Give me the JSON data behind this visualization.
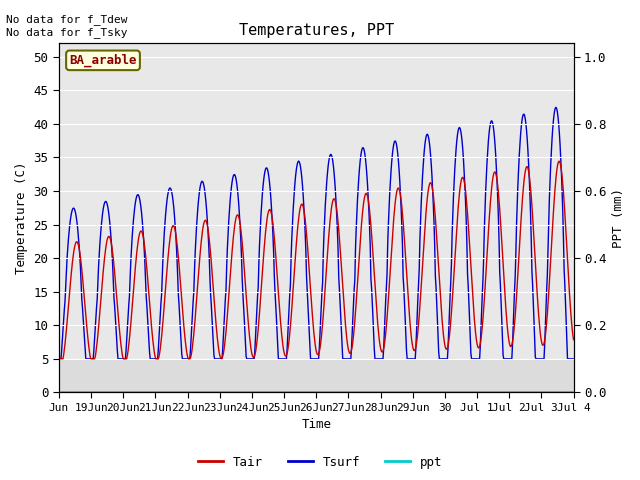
{
  "title": "Temperatures, PPT",
  "xlabel": "Time",
  "ylabel_left": "Temperature (C)",
  "ylabel_right": "PPT (mm)",
  "annotation_top_left": "No data for f_Tdew\nNo data for f_Tsky",
  "station_label": "BA_arable",
  "x_tick_labels": [
    "Jun",
    "19Jun",
    "20Jun",
    "21Jun",
    "22Jun",
    "23Jun",
    "24Jun",
    "25Jun",
    "26Jun",
    "27Jun",
    "28Jun",
    "29Jun",
    "30",
    "Jul 1",
    "Jul 2",
    "Jul 3",
    "Jul 4"
  ],
  "ylim_left": [
    0,
    52
  ],
  "ylim_right": [
    0.0,
    1.04
  ],
  "yticks_left": [
    0,
    5,
    10,
    15,
    20,
    25,
    30,
    35,
    40,
    45,
    50
  ],
  "yticks_right": [
    0.0,
    0.2,
    0.4,
    0.6,
    0.8,
    1.0
  ],
  "color_tair": "#cc0000",
  "color_tsurf": "#0000cc",
  "color_ppt": "#00cccc",
  "bg_color": "#dcdcdc",
  "bg_color_upper": "#e8e8e8",
  "grid_color": "#ffffff",
  "legend_labels": [
    "Tair",
    "Tsurf",
    "ppt"
  ],
  "n_days": 16,
  "figsize": [
    6.4,
    4.8
  ],
  "dpi": 100
}
